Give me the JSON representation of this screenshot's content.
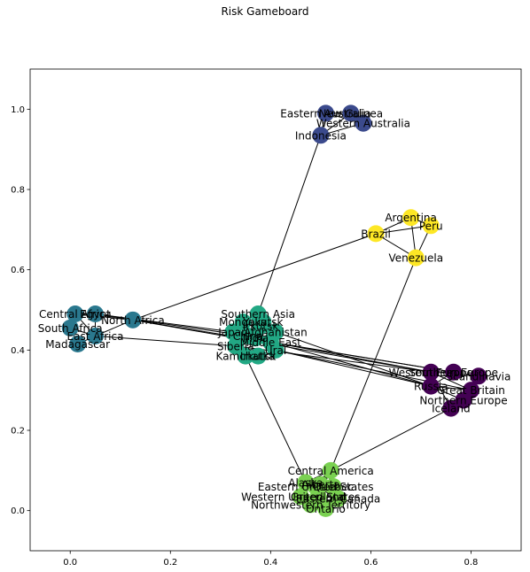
{
  "chart_data": {
    "type": "network",
    "title": "Risk Gameboard",
    "xlim": [
      -0.08,
      0.9
    ],
    "ylim": [
      -0.1,
      1.1
    ],
    "xticks": [
      0.0,
      0.2,
      0.4,
      0.6,
      0.8
    ],
    "yticks": [
      0.0,
      0.2,
      0.4,
      0.6,
      0.8,
      1.0
    ],
    "xtick_labels": [
      "0.0",
      "0.2",
      "0.4",
      "0.6",
      "0.8"
    ],
    "ytick_labels": [
      "0.0",
      "0.2",
      "0.4",
      "0.6",
      "0.8",
      "1.0"
    ],
    "continent_colors": {
      "Australia": "#3b4a8c",
      "South America": "#fde725",
      "Africa": "#2a788e",
      "Asia": "#22a884",
      "Europe": "#440154",
      "North America": "#7ad151"
    },
    "nodes": [
      {
        "name": "Eastern Australia",
        "continent": "Australia",
        "x": 0.51,
        "y": 0.99
      },
      {
        "name": "New Guinea",
        "continent": "Australia",
        "x": 0.56,
        "y": 0.99
      },
      {
        "name": "Western Australia",
        "continent": "Australia",
        "x": 0.585,
        "y": 0.965
      },
      {
        "name": "Indonesia",
        "continent": "Australia",
        "x": 0.5,
        "y": 0.935
      },
      {
        "name": "Argentina",
        "continent": "South America",
        "x": 0.68,
        "y": 0.73
      },
      {
        "name": "Peru",
        "continent": "South America",
        "x": 0.72,
        "y": 0.71
      },
      {
        "name": "Brazil",
        "continent": "South America",
        "x": 0.61,
        "y": 0.69
      },
      {
        "name": "Venezuela",
        "continent": "South America",
        "x": 0.69,
        "y": 0.63
      },
      {
        "name": "Central Africa",
        "continent": "Africa",
        "x": 0.01,
        "y": 0.49
      },
      {
        "name": "Egypt",
        "continent": "Africa",
        "x": 0.05,
        "y": 0.49
      },
      {
        "name": "North Africa",
        "continent": "Africa",
        "x": 0.125,
        "y": 0.475
      },
      {
        "name": "South Africa",
        "continent": "Africa",
        "x": 0.0,
        "y": 0.455
      },
      {
        "name": "East Africa",
        "continent": "Africa",
        "x": 0.05,
        "y": 0.435
      },
      {
        "name": "Madagascar",
        "continent": "Africa",
        "x": 0.015,
        "y": 0.415
      },
      {
        "name": "Southern Asia",
        "continent": "Asia",
        "x": 0.375,
        "y": 0.49
      },
      {
        "name": "Mongolia",
        "continent": "Asia",
        "x": 0.345,
        "y": 0.47
      },
      {
        "name": "Yakutsk",
        "continent": "Asia",
        "x": 0.385,
        "y": 0.47
      },
      {
        "name": "Irkutsk",
        "continent": "Asia",
        "x": 0.38,
        "y": 0.46
      },
      {
        "name": "Japan",
        "continent": "Asia",
        "x": 0.325,
        "y": 0.445
      },
      {
        "name": "Afghanistan",
        "continent": "Asia",
        "x": 0.41,
        "y": 0.445
      },
      {
        "name": "China",
        "continent": "Asia",
        "x": 0.355,
        "y": 0.435
      },
      {
        "name": "India",
        "continent": "Asia",
        "x": 0.37,
        "y": 0.43
      },
      {
        "name": "Middle East",
        "continent": "Asia",
        "x": 0.4,
        "y": 0.42
      },
      {
        "name": "Ural",
        "continent": "Asia",
        "x": 0.41,
        "y": 0.4
      },
      {
        "name": "Siberia",
        "continent": "Asia",
        "x": 0.33,
        "y": 0.41
      },
      {
        "name": "Kamchatka",
        "continent": "Asia",
        "x": 0.35,
        "y": 0.385
      },
      {
        "name": "Irkutsk",
        "continent": "Asia",
        "x": 0.375,
        "y": 0.385
      },
      {
        "name": "Western Europe",
        "continent": "Europe",
        "x": 0.72,
        "y": 0.345
      },
      {
        "name": "Southern Europe",
        "continent": "Europe",
        "x": 0.765,
        "y": 0.345
      },
      {
        "name": "Scandinavia",
        "continent": "Europe",
        "x": 0.815,
        "y": 0.335
      },
      {
        "name": "Russia",
        "continent": "Europe",
        "x": 0.72,
        "y": 0.31
      },
      {
        "name": "Great Britain",
        "continent": "Europe",
        "x": 0.8,
        "y": 0.3
      },
      {
        "name": "Northern Europe",
        "continent": "Europe",
        "x": 0.785,
        "y": 0.275
      },
      {
        "name": "Iceland",
        "continent": "Europe",
        "x": 0.76,
        "y": 0.255
      },
      {
        "name": "Central America",
        "continent": "North America",
        "x": 0.52,
        "y": 0.1
      },
      {
        "name": "Alaska",
        "continent": "North America",
        "x": 0.47,
        "y": 0.07
      },
      {
        "name": "Alberta",
        "continent": "North America",
        "x": 0.5,
        "y": 0.065
      },
      {
        "name": "Eastern United States",
        "continent": "North America",
        "x": 0.49,
        "y": 0.06
      },
      {
        "name": "Quebec",
        "continent": "North America",
        "x": 0.525,
        "y": 0.06
      },
      {
        "name": "Western United States",
        "continent": "North America",
        "x": 0.46,
        "y": 0.035
      },
      {
        "name": "Greenland",
        "continent": "North America",
        "x": 0.495,
        "y": 0.035
      },
      {
        "name": "Eastern Canada",
        "continent": "North America",
        "x": 0.535,
        "y": 0.03
      },
      {
        "name": "Northwestern Territory",
        "continent": "North America",
        "x": 0.48,
        "y": 0.015
      },
      {
        "name": "Ontario",
        "continent": "North America",
        "x": 0.51,
        "y": 0.005
      }
    ],
    "edges": [
      [
        "Eastern Australia",
        "New Guinea"
      ],
      [
        "Eastern Australia",
        "Western Australia"
      ],
      [
        "New Guinea",
        "Western Australia"
      ],
      [
        "Indonesia",
        "New Guinea"
      ],
      [
        "Indonesia",
        "Western Australia"
      ],
      [
        "Indonesia",
        "Eastern Australia"
      ],
      [
        "Indonesia",
        "Southern Asia"
      ],
      [
        "Argentina",
        "Peru"
      ],
      [
        "Argentina",
        "Brazil"
      ],
      [
        "Argentina",
        "Venezuela"
      ],
      [
        "Brazil",
        "Peru"
      ],
      [
        "Brazil",
        "Venezuela"
      ],
      [
        "Peru",
        "Venezuela"
      ],
      [
        "Brazil",
        "North Africa"
      ],
      [
        "Venezuela",
        "Central America"
      ],
      [
        "Central Africa",
        "Egypt"
      ],
      [
        "Central Africa",
        "North Africa"
      ],
      [
        "Central Africa",
        "South Africa"
      ],
      [
        "Central Africa",
        "East Africa"
      ],
      [
        "Egypt",
        "North Africa"
      ],
      [
        "Egypt",
        "East Africa"
      ],
      [
        "South Africa",
        "East Africa"
      ],
      [
        "South Africa",
        "Madagascar"
      ],
      [
        "East Africa",
        "Madagascar"
      ],
      [
        "North Africa",
        "East Africa"
      ],
      [
        "Egypt",
        "Japan"
      ],
      [
        "Egypt",
        "China"
      ],
      [
        "East Africa",
        "Siberia"
      ],
      [
        "North Africa",
        "Western Europe"
      ],
      [
        "North Africa",
        "Southern Europe"
      ],
      [
        "Southern Asia",
        "Mongolia"
      ],
      [
        "Southern Asia",
        "Yakutsk"
      ],
      [
        "Mongolia",
        "China"
      ],
      [
        "Japan",
        "China"
      ],
      [
        "China",
        "Afghanistan"
      ],
      [
        "India",
        "Middle East"
      ],
      [
        "Middle East",
        "Ural"
      ],
      [
        "Siberia",
        "Kamchatka"
      ],
      [
        "China",
        "Ural"
      ],
      [
        "Kamchatka",
        "Alaska"
      ],
      [
        "Afghanistan",
        "Russia"
      ],
      [
        "Middle East",
        "Southern Europe"
      ],
      [
        "Ural",
        "Russia"
      ],
      [
        "Middle East",
        "Western Europe"
      ],
      [
        "Ural",
        "Great Britain"
      ],
      [
        "India",
        "Russia"
      ],
      [
        "Siberia",
        "Western Europe"
      ],
      [
        "Western Europe",
        "Southern Europe"
      ],
      [
        "Western Europe",
        "Russia"
      ],
      [
        "Southern Europe",
        "Scandinavia"
      ],
      [
        "Southern Europe",
        "Russia"
      ],
      [
        "Scandinavia",
        "Great Britain"
      ],
      [
        "Russia",
        "Great Britain"
      ],
      [
        "Great Britain",
        "Northern Europe"
      ],
      [
        "Northern Europe",
        "Iceland"
      ],
      [
        "Russia",
        "Northern Europe"
      ],
      [
        "Western Europe",
        "Great Britain"
      ],
      [
        "Scandinavia",
        "Northern Europe"
      ],
      [
        "Iceland",
        "Western Europe"
      ],
      [
        "Iceland",
        "Central America"
      ],
      [
        "Central America",
        "Alaska"
      ],
      [
        "Central America",
        "Alberta"
      ],
      [
        "Central America",
        "Eastern United States"
      ],
      [
        "Central America",
        "Quebec"
      ],
      [
        "Central America",
        "Western United States"
      ],
      [
        "Central America",
        "Greenland"
      ],
      [
        "Central America",
        "Eastern Canada"
      ],
      [
        "Central America",
        "Northwestern Territory"
      ],
      [
        "Central America",
        "Ontario"
      ],
      [
        "Alaska",
        "Alberta"
      ],
      [
        "Alberta",
        "Quebec"
      ],
      [
        "Quebec",
        "Eastern Canada"
      ],
      [
        "Western United States",
        "Greenland"
      ],
      [
        "Greenland",
        "Ontario"
      ],
      [
        "Northwestern Territory",
        "Ontario"
      ],
      [
        "Eastern United States",
        "Eastern Canada"
      ]
    ]
  }
}
